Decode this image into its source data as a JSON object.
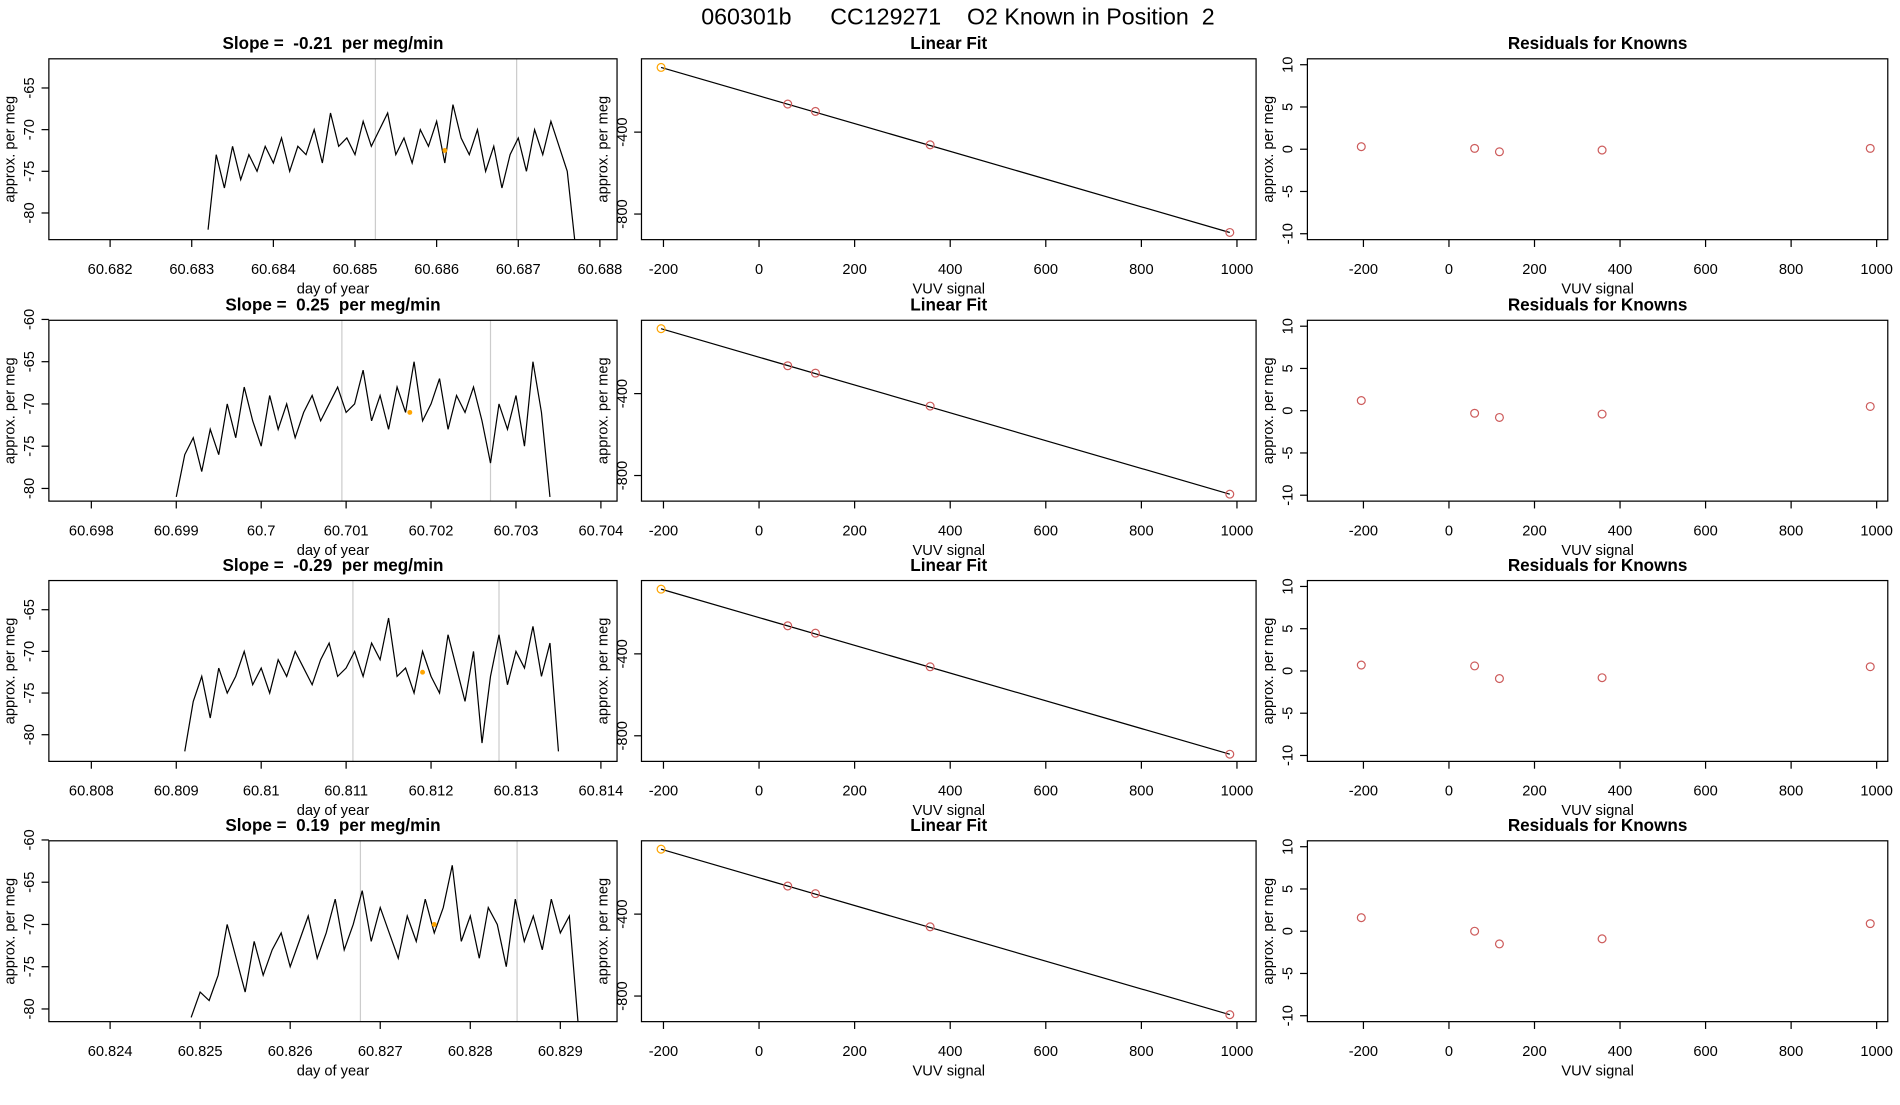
{
  "title": "060301b      CC129271    O2 Known in Position  2",
  "chart_data": [
    {
      "type": "line",
      "title": "Slope =  -0.21  per meg/min",
      "xlabel": "day of year",
      "ylabel": "approx. per meg",
      "x": [
        60.6832,
        60.6833,
        60.6834,
        60.6835,
        60.6836,
        60.6837,
        60.6838,
        60.6839,
        60.684,
        60.6841,
        60.6842,
        60.6843,
        60.6844,
        60.6845,
        60.6846,
        60.6847,
        60.6848,
        60.6849,
        60.685,
        60.6851,
        60.6852,
        60.6853,
        60.6854,
        60.6855,
        60.6856,
        60.6857,
        60.6858,
        60.6859,
        60.686,
        60.6861,
        60.6862,
        60.6863,
        60.6864,
        60.6865,
        60.6866,
        60.6867,
        60.6868,
        60.6869,
        60.687,
        60.6871,
        60.6872,
        60.6873,
        60.6874,
        60.6875,
        60.6876,
        60.6877
      ],
      "values": [
        -82,
        -73,
        -77,
        -72,
        -76,
        -73,
        -75,
        -72,
        -74,
        -71,
        -75,
        -72,
        -73,
        -70,
        -74,
        -68,
        -72,
        -71,
        -73,
        -69,
        -72,
        -70,
        -68,
        -73,
        -71,
        -74,
        -70,
        -72,
        -69,
        -74,
        -67,
        -71,
        -73,
        -70,
        -75,
        -72,
        -77,
        -73,
        -71,
        -75,
        -70,
        -73,
        -69,
        -72,
        -75,
        -84
      ],
      "color": "#000000",
      "xlim": [
        60.68125,
        60.68821
      ],
      "ylim": [
        -83.2,
        -61.5
      ],
      "xticks": [
        60.682,
        60.683,
        60.684,
        60.685,
        60.686,
        60.687,
        60.688
      ],
      "yticks": [
        -80,
        -75,
        -70,
        -65
      ],
      "vlines": [
        60.68525,
        60.68698
      ],
      "vline_color": "#cccccc",
      "highlight": {
        "x": 60.6861,
        "y": -72.5,
        "color": "#ffa500"
      }
    },
    {
      "type": "scatter",
      "title": "Linear Fit",
      "xlabel": "VUV signal",
      "ylabel": "approx. per meg",
      "x": [
        -205,
        60,
        118,
        358,
        985
      ],
      "values": [
        -84,
        -263,
        -299,
        -462,
        -890
      ],
      "colors": [
        "#ffa500",
        "#cd5c5c",
        "#cd5c5c",
        "#cd5c5c",
        "#cd5c5c"
      ],
      "fit": {
        "x": [
          -205,
          985
        ],
        "y": [
          -84,
          -890
        ]
      },
      "xlim": [
        -246,
        1040
      ],
      "ylim": [
        -925,
        -42
      ],
      "xticks": [
        -200,
        0,
        200,
        400,
        600,
        800,
        1000
      ],
      "yticks": [
        -800,
        -400
      ]
    },
    {
      "type": "scatter",
      "title": "Residuals for Knowns",
      "xlabel": "VUV signal",
      "ylabel": "approx. per meg",
      "x": [
        -205,
        60,
        118,
        358,
        985
      ],
      "values": [
        0.3,
        0.1,
        -0.3,
        -0.1,
        0.1
      ],
      "colors": [
        "#cd5c5c",
        "#cd5c5c",
        "#cd5c5c",
        "#cd5c5c",
        "#cd5c5c"
      ],
      "xlim": [
        -331,
        1026
      ],
      "ylim": [
        -10.7,
        10.7
      ],
      "xticks": [
        -200,
        0,
        200,
        400,
        600,
        800,
        1000
      ],
      "yticks": [
        -10,
        -5,
        0,
        5,
        10
      ]
    },
    {
      "type": "line",
      "title": "Slope =  0.25  per meg/min",
      "xlabel": "day of year",
      "ylabel": "approx. per meg",
      "x": [
        60.699,
        60.6991,
        60.6992,
        60.6993,
        60.6994,
        60.6995,
        60.6996,
        60.6997,
        60.6998,
        60.6999,
        60.7,
        60.7001,
        60.7002,
        60.7003,
        60.7004,
        60.7005,
        60.7006,
        60.7007,
        60.7008,
        60.7009,
        60.701,
        60.7011,
        60.7012,
        60.7013,
        60.7014,
        60.7015,
        60.7016,
        60.7017,
        60.7018,
        60.7019,
        60.702,
        60.7021,
        60.7022,
        60.7023,
        60.7024,
        60.7025,
        60.7026,
        60.7027,
        60.7028,
        60.7029,
        60.703,
        60.7031,
        60.7032,
        60.7033,
        60.7034
      ],
      "values": [
        -81,
        -76,
        -74,
        -78,
        -73,
        -76,
        -70,
        -74,
        -68,
        -72,
        -75,
        -69,
        -73,
        -70,
        -74,
        -71,
        -69,
        -72,
        -70,
        -68,
        -71,
        -70,
        -66,
        -72,
        -69,
        -73,
        -68,
        -71,
        -65,
        -72,
        -70,
        -67,
        -73,
        -69,
        -71,
        -68,
        -72,
        -77,
        -70,
        -73,
        -69,
        -75,
        -65,
        -71,
        -81
      ],
      "color": "#000000",
      "xlim": [
        60.6975,
        60.70419
      ],
      "ylim": [
        -81.5,
        -60.1
      ],
      "xticks": [
        60.698,
        60.699,
        60.7,
        60.701,
        60.702,
        60.703,
        60.704
      ],
      "yticks": [
        -80,
        -75,
        -70,
        -65,
        -60
      ],
      "vlines": [
        60.70095,
        60.7027
      ],
      "vline_color": "#cccccc",
      "highlight": {
        "x": 60.70175,
        "y": -71,
        "color": "#ffa500"
      }
    },
    {
      "type": "scatter",
      "title": "Linear Fit",
      "xlabel": "VUV signal",
      "ylabel": "approx. per meg",
      "x": [
        -205,
        60,
        118,
        358,
        985
      ],
      "values": [
        -83,
        -264,
        -300,
        -461,
        -891
      ],
      "colors": [
        "#ffa500",
        "#cd5c5c",
        "#cd5c5c",
        "#cd5c5c",
        "#cd5c5c"
      ],
      "fit": {
        "x": [
          -205,
          985
        ],
        "y": [
          -83,
          -891
        ]
      },
      "xlim": [
        -246,
        1040
      ],
      "ylim": [
        -925,
        -42
      ],
      "xticks": [
        -200,
        0,
        200,
        400,
        600,
        800,
        1000
      ],
      "yticks": [
        -800,
        -400
      ]
    },
    {
      "type": "scatter",
      "title": "Residuals for Knowns",
      "xlabel": "VUV signal",
      "ylabel": "approx. per meg",
      "x": [
        -205,
        60,
        118,
        358,
        985
      ],
      "values": [
        1.2,
        -0.3,
        -0.8,
        -0.4,
        0.5
      ],
      "colors": [
        "#cd5c5c",
        "#cd5c5c",
        "#cd5c5c",
        "#cd5c5c",
        "#cd5c5c"
      ],
      "xlim": [
        -331,
        1026
      ],
      "ylim": [
        -10.7,
        10.7
      ],
      "xticks": [
        -200,
        0,
        200,
        400,
        600,
        800,
        1000
      ],
      "yticks": [
        -10,
        -5,
        0,
        5,
        10
      ]
    },
    {
      "type": "line",
      "title": "Slope =  -0.29  per meg/min",
      "xlabel": "day of year",
      "ylabel": "approx. per meg",
      "x": [
        60.8091,
        60.8092,
        60.8093,
        60.8094,
        60.8095,
        60.8096,
        60.8097,
        60.8098,
        60.8099,
        60.81,
        60.8101,
        60.8102,
        60.8103,
        60.8104,
        60.8105,
        60.8106,
        60.8107,
        60.8108,
        60.8109,
        60.811,
        60.8111,
        60.8112,
        60.8113,
        60.8114,
        60.8115,
        60.8116,
        60.8117,
        60.8118,
        60.8119,
        60.812,
        60.8121,
        60.8122,
        60.8123,
        60.8124,
        60.8125,
        60.8126,
        60.8127,
        60.8128,
        60.8129,
        60.813,
        60.8131,
        60.8132,
        60.8133,
        60.8134,
        60.8135
      ],
      "values": [
        -82,
        -76,
        -73,
        -78,
        -72,
        -75,
        -73,
        -70,
        -74,
        -72,
        -75,
        -71,
        -73,
        -70,
        -72,
        -74,
        -71,
        -69,
        -73,
        -72,
        -70,
        -73,
        -69,
        -71,
        -66,
        -73,
        -72,
        -75,
        -70,
        -73,
        -75,
        -68,
        -72,
        -76,
        -70,
        -81,
        -73,
        -68,
        -74,
        -70,
        -72,
        -67,
        -73,
        -69,
        -82
      ],
      "color": "#000000",
      "xlim": [
        60.8075,
        60.81419
      ],
      "ylim": [
        -83.2,
        -61.5
      ],
      "xticks": [
        60.808,
        60.809,
        60.81,
        60.811,
        60.812,
        60.813,
        60.814
      ],
      "yticks": [
        -80,
        -75,
        -70,
        -65
      ],
      "vlines": [
        60.81108,
        60.8128
      ],
      "vline_color": "#cccccc",
      "highlight": {
        "x": 60.8119,
        "y": -72.5,
        "color": "#ffa500"
      }
    },
    {
      "type": "scatter",
      "title": "Linear Fit",
      "xlabel": "VUV signal",
      "ylabel": "approx. per meg",
      "x": [
        -205,
        60,
        118,
        358,
        985
      ],
      "values": [
        -84,
        -263,
        -299,
        -463,
        -890
      ],
      "colors": [
        "#ffa500",
        "#cd5c5c",
        "#cd5c5c",
        "#cd5c5c",
        "#cd5c5c"
      ],
      "fit": {
        "x": [
          -205,
          985
        ],
        "y": [
          -84,
          -890
        ]
      },
      "xlim": [
        -246,
        1040
      ],
      "ylim": [
        -925,
        -42
      ],
      "xticks": [
        -200,
        0,
        200,
        400,
        600,
        800,
        1000
      ],
      "yticks": [
        -800,
        -400
      ]
    },
    {
      "type": "scatter",
      "title": "Residuals for Knowns",
      "xlabel": "VUV signal",
      "ylabel": "approx. per meg",
      "x": [
        -205,
        60,
        118,
        358,
        985
      ],
      "values": [
        0.7,
        0.6,
        -0.9,
        -0.8,
        0.5
      ],
      "colors": [
        "#cd5c5c",
        "#cd5c5c",
        "#cd5c5c",
        "#cd5c5c",
        "#cd5c5c"
      ],
      "xlim": [
        -331,
        1026
      ],
      "ylim": [
        -10.7,
        10.7
      ],
      "xticks": [
        -200,
        0,
        200,
        400,
        600,
        800,
        1000
      ],
      "yticks": [
        -10,
        -5,
        0,
        5,
        10
      ]
    },
    {
      "type": "line",
      "title": "Slope =  0.19  per meg/min",
      "xlabel": "day of year",
      "ylabel": "approx. per meg",
      "x": [
        60.8249,
        60.825,
        60.8251,
        60.8252,
        60.8253,
        60.8254,
        60.8255,
        60.8256,
        60.8257,
        60.8258,
        60.8259,
        60.826,
        60.8261,
        60.8262,
        60.8263,
        60.8264,
        60.8265,
        60.8266,
        60.8267,
        60.8268,
        60.8269,
        60.827,
        60.8271,
        60.8272,
        60.8273,
        60.8274,
        60.8275,
        60.8276,
        60.8277,
        60.8278,
        60.8279,
        60.828,
        60.8281,
        60.8282,
        60.8283,
        60.8284,
        60.8285,
        60.8286,
        60.8287,
        60.8288,
        60.8289,
        60.829,
        60.8291,
        60.8292
      ],
      "values": [
        -81,
        -78,
        -79,
        -76,
        -70,
        -74,
        -78,
        -72,
        -76,
        -73,
        -71,
        -75,
        -72,
        -69,
        -74,
        -71,
        -67,
        -73,
        -70,
        -66,
        -72,
        -68,
        -71,
        -74,
        -69,
        -72,
        -67,
        -71,
        -68,
        -63,
        -72,
        -69,
        -74,
        -68,
        -70,
        -75,
        -67,
        -72,
        -69,
        -73,
        -67,
        -71,
        -69,
        -82
      ],
      "color": "#000000",
      "xlim": [
        60.82332,
        60.82963
      ],
      "ylim": [
        -81.5,
        -60.1
      ],
      "xticks": [
        60.824,
        60.825,
        60.826,
        60.827,
        60.828,
        60.829
      ],
      "yticks": [
        -80,
        -75,
        -70,
        -65,
        -60
      ],
      "vlines": [
        60.82678,
        60.82852
      ],
      "vline_color": "#cccccc",
      "highlight": {
        "x": 60.8276,
        "y": -70,
        "color": "#ffa500"
      }
    },
    {
      "type": "scatter",
      "title": "Linear Fit",
      "xlabel": "VUV signal",
      "ylabel": "approx. per meg",
      "x": [
        -205,
        60,
        118,
        358,
        985
      ],
      "values": [
        -83,
        -263,
        -300,
        -462,
        -891
      ],
      "colors": [
        "#ffa500",
        "#cd5c5c",
        "#cd5c5c",
        "#cd5c5c",
        "#cd5c5c"
      ],
      "fit": {
        "x": [
          -205,
          985
        ],
        "y": [
          -83,
          -891
        ]
      },
      "xlim": [
        -246,
        1040
      ],
      "ylim": [
        -925,
        -42
      ],
      "xticks": [
        -200,
        0,
        200,
        400,
        600,
        800,
        1000
      ],
      "yticks": [
        -800,
        -400
      ]
    },
    {
      "type": "scatter",
      "title": "Residuals for Knowns",
      "xlabel": "VUV signal",
      "ylabel": "approx. per meg",
      "x": [
        -205,
        60,
        118,
        358,
        985
      ],
      "values": [
        1.6,
        0,
        -1.5,
        -0.9,
        0.9
      ],
      "colors": [
        "#cd5c5c",
        "#cd5c5c",
        "#cd5c5c",
        "#cd5c5c",
        "#cd5c5c"
      ],
      "xlim": [
        -331,
        1026
      ],
      "ylim": [
        -10.7,
        10.7
      ],
      "xticks": [
        -200,
        0,
        200,
        400,
        600,
        800,
        1000
      ],
      "yticks": [
        -10,
        -5,
        0,
        5,
        10
      ]
    }
  ]
}
